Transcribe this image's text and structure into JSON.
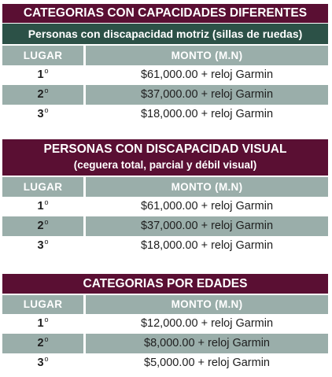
{
  "sections": [
    {
      "title": "CATEGORIAS CON CAPACIDADES DIFERENTES",
      "subtitle": "Personas con discapacidad motriz (sillas de ruedas)",
      "headers": {
        "place": "LUGAR",
        "amount": "MONTO (M.N)"
      },
      "rows": [
        {
          "place": "1",
          "suffix": "o",
          "amount": "$61,000.00 + reloj Garmin"
        },
        {
          "place": "2",
          "suffix": "o",
          "amount": "$37,000.00 + reloj Garmin"
        },
        {
          "place": "3",
          "suffix": "o",
          "amount": "$18,000.00 + reloj Garmin"
        }
      ]
    },
    {
      "title": "PERSONAS CON DISCAPACIDAD VISUAL",
      "title_line2": "(ceguera total, parcial y débil visual)",
      "headers": {
        "place": "LUGAR",
        "amount": "MONTO (M.N)"
      },
      "rows": [
        {
          "place": "1",
          "suffix": "o",
          "amount": "$61,000.00 + reloj Garmin"
        },
        {
          "place": "2",
          "suffix": "o",
          "amount": "$37,000.00 + reloj Garmin"
        },
        {
          "place": "3",
          "suffix": "o",
          "amount": "$18,000.00 + reloj Garmin"
        }
      ]
    },
    {
      "title": "CATEGORIAS POR EDADES",
      "headers": {
        "place": "LUGAR",
        "amount": "MONTO (M.N)"
      },
      "rows": [
        {
          "place": "1",
          "suffix": "o",
          "amount": "$12,000.00 + reloj Garmin"
        },
        {
          "place": "2",
          "suffix": "o",
          "amount": "$8,000.00 + reloj Garmin"
        },
        {
          "place": "3",
          "suffix": "o",
          "amount": "$5,000.00 + reloj Garmin"
        }
      ]
    }
  ],
  "colors": {
    "title_bg": "#5a0f33",
    "subtitle_bg": "#2c5147",
    "header_bg": "#9aaeaa",
    "alt_row_bg": "#9aaeaa"
  }
}
